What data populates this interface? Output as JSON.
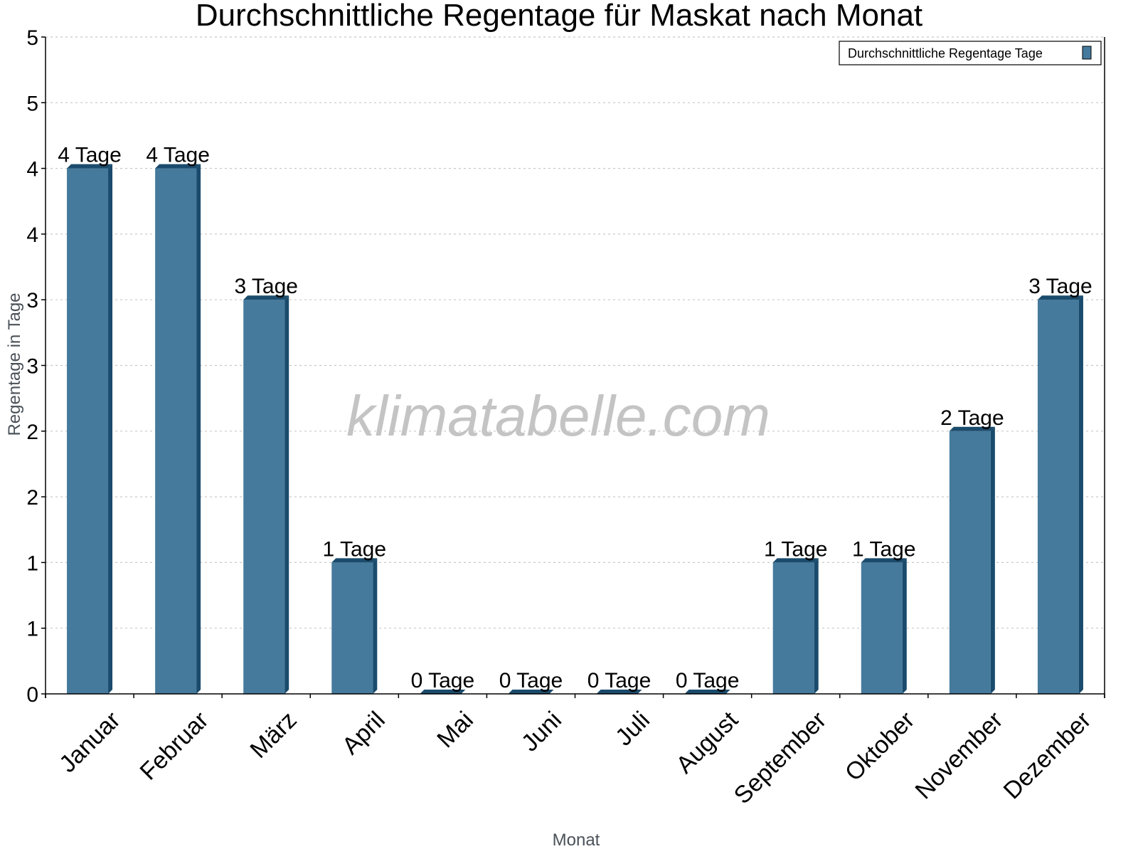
{
  "chart_data": {
    "type": "bar",
    "title": "Durchschnittliche Regentage für Maskat nach Monat",
    "xlabel": "Monat",
    "ylabel": "Regentage in Tage",
    "ylim": [
      0,
      5
    ],
    "y_ticks": [
      0,
      0.5,
      1,
      1.5,
      2,
      2.5,
      3,
      3.5,
      4,
      4.5,
      5
    ],
    "y_tick_labels": [
      "0",
      "1",
      "1",
      "2",
      "2",
      "3",
      "3",
      "4",
      "4",
      "5",
      "5"
    ],
    "grid": true,
    "legend_position": "top-right",
    "categories": [
      "Januar",
      "Februar",
      "März",
      "April",
      "Mai",
      "Juni",
      "Juli",
      "August",
      "September",
      "Oktober",
      "November",
      "Dezember"
    ],
    "series": [
      {
        "name": "Durchschnittliche Regentage Tage",
        "color": "#457a9c",
        "values": [
          4,
          4,
          3,
          1,
          0,
          0,
          0,
          0,
          1,
          1,
          2,
          3
        ],
        "data_labels": [
          "4 Tage",
          "4 Tage",
          "3 Tage",
          "1 Tage",
          "0 Tage",
          "0 Tage",
          "0 Tage",
          "0 Tage",
          "1 Tage",
          "1 Tage",
          "2 Tage",
          "3 Tage"
        ]
      }
    ],
    "watermark": "klimatabelle.com"
  },
  "colors": {
    "bar_front": "#457a9c",
    "bar_side": "#1a4b6c",
    "grid": "#c8c8c8",
    "axis": "#000000"
  }
}
